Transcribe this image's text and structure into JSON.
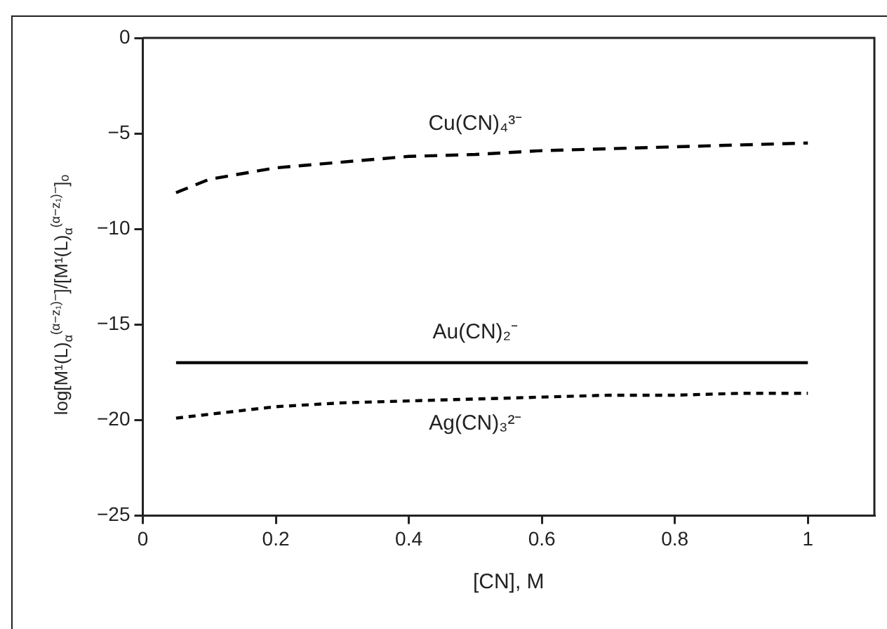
{
  "chart_data": {
    "type": "line",
    "xlabel": "[CN], M",
    "ylabel": "log[M¹(L)$_{α}$$^{(α−z₁)−}$]/[M¹(L)$_{α}$$^{(α−z₁)−}$]ₒ",
    "x": [
      0.05,
      0.1,
      0.2,
      0.3,
      0.4,
      0.5,
      0.6,
      0.7,
      0.8,
      0.9,
      1.0
    ],
    "series": [
      {
        "name": "Cu(CN)₄³⁻",
        "color": "#000000",
        "line_style": "dashed",
        "values": [
          -8.1,
          -7.4,
          -6.8,
          -6.5,
          -6.2,
          -6.1,
          -5.9,
          -5.8,
          -5.7,
          -5.6,
          -5.5
        ]
      },
      {
        "name": "Au(CN)₂⁻",
        "color": "#000000",
        "line_style": "solid",
        "values": [
          -17,
          -17,
          -17,
          -17,
          -17,
          -17,
          -17,
          -17,
          -17,
          -17,
          -17
        ]
      },
      {
        "name": "Ag(CN)₃²⁻",
        "color": "#000000",
        "line_style": "dotted",
        "values": [
          -19.9,
          -19.7,
          -19.3,
          -19.1,
          -19.0,
          -18.9,
          -18.8,
          -18.7,
          -18.7,
          -18.6,
          -18.6
        ]
      }
    ],
    "xlim": [
      0,
      1.1
    ],
    "xticks": [
      0,
      0.2,
      0.4,
      0.6,
      0.8,
      1
    ],
    "ylim": [
      -25,
      0
    ],
    "yticks": [
      {
        "value": -25,
        "label": "−25"
      },
      {
        "value": -20,
        "label": "−20"
      },
      {
        "value": -15,
        "label": "−15"
      },
      {
        "value": -10,
        "label": "−10"
      },
      {
        "value": -5,
        "label": "−5"
      },
      0
    ],
    "grid": false,
    "legend": false,
    "marker": "none"
  }
}
